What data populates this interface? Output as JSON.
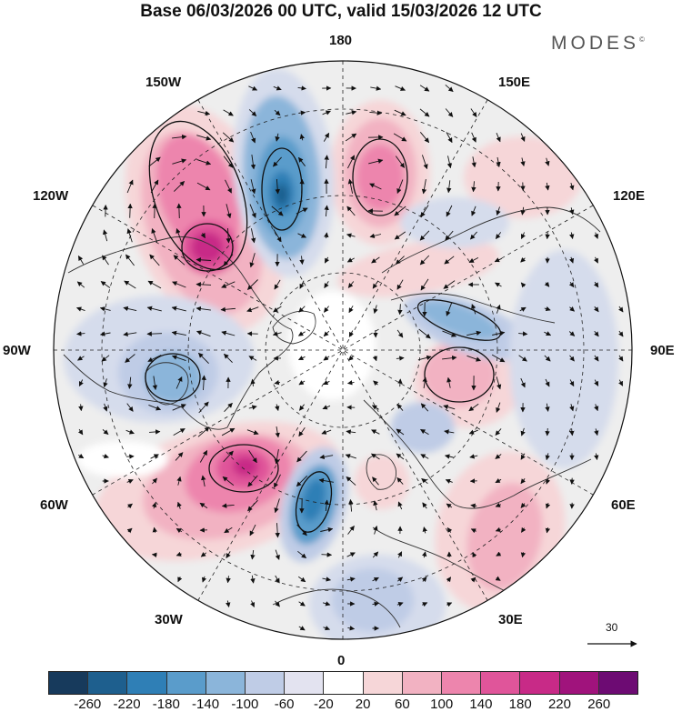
{
  "title": "Base 06/03/2026 00 UTC, valid 15/03/2026 12 UTC",
  "brand": "MODES",
  "brand_mark": "©",
  "longitude_labels": {
    "n180": "180",
    "e150": "150E",
    "e120": "120E",
    "e90": "90E",
    "e60": "60E",
    "e30": "30E",
    "p0": "0",
    "w30": "30W",
    "w60": "60W",
    "w90": "90W",
    "w120": "120W",
    "w150": "150W"
  },
  "reference_vector": "30",
  "colorbar": {
    "colors": [
      "#173a5c",
      "#1e5f8e",
      "#2f7fb6",
      "#5a9ccb",
      "#8bb5da",
      "#bfcce6",
      "#e3e3f0",
      "#ffffff",
      "#f6d6d8",
      "#f2b2c2",
      "#ed85ad",
      "#e0559a",
      "#c82a87",
      "#a0137c",
      "#6d0b73"
    ],
    "ticks": [
      "-260",
      "-220",
      "-180",
      "-140",
      "-100",
      "-60",
      "-20",
      "20",
      "60",
      "100",
      "140",
      "180",
      "220",
      "260"
    ]
  },
  "anomaly_color_key": {
    "strong_positive": "#c82a87",
    "positive": "#ed85ad",
    "weak_positive": "#f6d6d8",
    "strong_negative": "#2f7fb6",
    "negative": "#8bb5da",
    "weak_negative": "#d5dcec",
    "background": "#eeeeee"
  }
}
